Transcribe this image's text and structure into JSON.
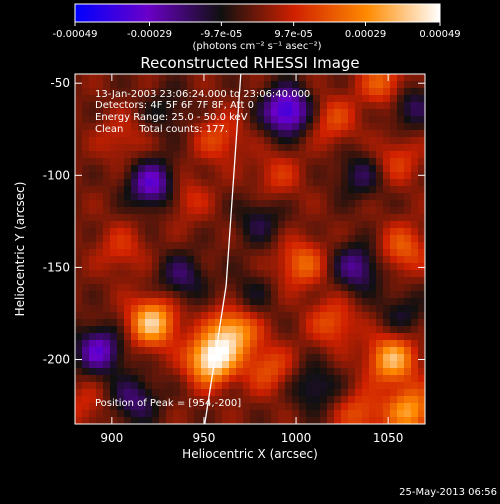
{
  "colorbar": {
    "tick_labels": [
      "-0.00049",
      "-0.00029",
      "-9.7e-05",
      "9.7e-05",
      "0.00029",
      "0.00049"
    ],
    "tick_values": [
      -0.00049,
      -0.00029,
      -9.7e-05,
      9.7e-05,
      0.00029,
      0.00049
    ],
    "range": [
      -0.00049,
      0.00049
    ],
    "units_label": "(photons cm⁻² s⁻¹ asec⁻²)",
    "colors": [
      "#0000ff",
      "#6a00c8",
      "#101010",
      "#d02000",
      "#ff8a00",
      "#ffffff"
    ]
  },
  "chart_data": {
    "type": "heatmap",
    "title": "Reconstructed RHESSI Image",
    "xlabel": "Heliocentric X (arcsec)",
    "ylabel": "Heliocentric Y (arcsec)",
    "xlim": [
      880,
      1070
    ],
    "ylim": [
      -235,
      -45
    ],
    "x_ticks": [
      900,
      950,
      1000,
      1050
    ],
    "y_ticks": [
      -50,
      -100,
      -150,
      -200
    ],
    "annotations": [
      "13-Jan-2003 23:06:24.000 to 23:06:40.000",
      "Detectors: 4F 5F 6F 7F 8F, Att 0",
      "Energy Range: 25.0 - 50.0 keV",
      "Clean     Total counts: 177."
    ],
    "peak_label": "Position of Peak = [954,-200]",
    "peak": {
      "x": 954,
      "y": -200
    },
    "limb_line": [
      [
        950,
        -238
      ],
      [
        962,
        -160
      ],
      [
        970,
        -45
      ]
    ],
    "sources": [
      {
        "x": 954,
        "y": -200,
        "value": 0.00049
      },
      {
        "x": 922,
        "y": -180,
        "value": 0.0004
      },
      {
        "x": 966,
        "y": -185,
        "value": 0.00036
      },
      {
        "x": 1052,
        "y": -200,
        "value": 0.00036
      },
      {
        "x": 1062,
        "y": -228,
        "value": 0.00032
      },
      {
        "x": 1048,
        "y": -50,
        "value": 0.00022
      },
      {
        "x": 1003,
        "y": -148,
        "value": 0.00022
      },
      {
        "x": 1058,
        "y": -140,
        "value": 0.0002
      },
      {
        "x": 1020,
        "y": -180,
        "value": 0.00018
      },
      {
        "x": 958,
        "y": -80,
        "value": 0.00016
      },
      {
        "x": 1020,
        "y": -70,
        "value": 0.00016
      },
      {
        "x": 1035,
        "y": -230,
        "value": 0.00018
      },
      {
        "x": 985,
        "y": -205,
        "value": 0.00018
      },
      {
        "x": 905,
        "y": -140,
        "value": 0.00012
      },
      {
        "x": 905,
        "y": -80,
        "value": 0.0001
      },
      {
        "x": 1055,
        "y": -92,
        "value": 0.00014
      },
      {
        "x": 940,
        "y": -112,
        "value": 0.00012
      },
      {
        "x": 990,
        "y": -100,
        "value": 0.00012
      },
      {
        "x": 885,
        "y": -225,
        "value": 0.0001
      },
      {
        "x": 995,
        "y": -65,
        "value": -0.0004
      },
      {
        "x": 922,
        "y": -105,
        "value": -0.00032
      },
      {
        "x": 893,
        "y": -195,
        "value": -0.0003
      },
      {
        "x": 1033,
        "y": -150,
        "value": -0.00024
      },
      {
        "x": 938,
        "y": -155,
        "value": -0.00018
      },
      {
        "x": 1062,
        "y": -62,
        "value": -0.00018
      },
      {
        "x": 980,
        "y": -125,
        "value": -0.00014
      },
      {
        "x": 1035,
        "y": -100,
        "value": -0.00016
      },
      {
        "x": 912,
        "y": -222,
        "value": -0.0002
      },
      {
        "x": 1010,
        "y": -215,
        "value": -0.00016
      },
      {
        "x": 1058,
        "y": -175,
        "value": -0.00012
      },
      {
        "x": 930,
        "y": -65,
        "value": -0.0001
      },
      {
        "x": 975,
        "y": -165,
        "value": -0.0001
      }
    ]
  },
  "timestamp": "25-May-2013 06:56"
}
